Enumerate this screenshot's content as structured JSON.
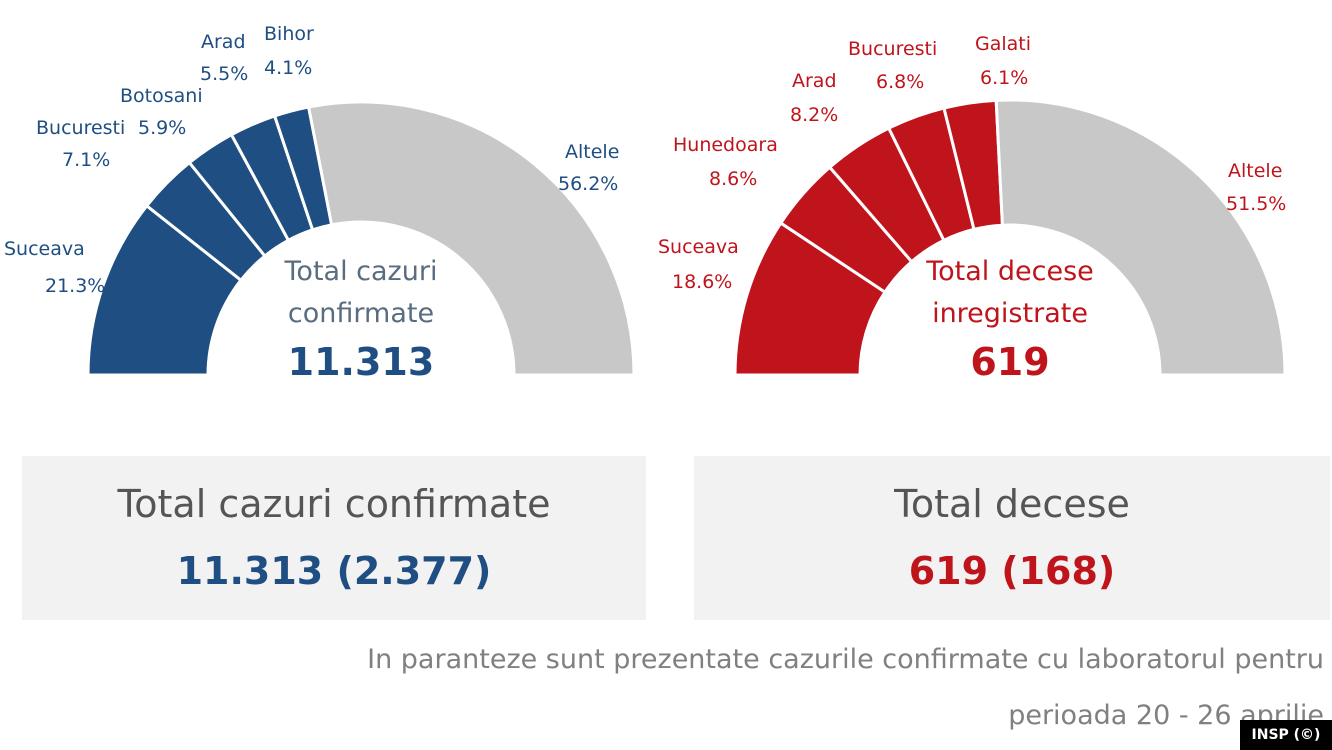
{
  "chart_data": [
    {
      "type": "pie",
      "variant": "half-donut",
      "center_text": [
        "Total cazuri",
        "confirmate"
      ],
      "center_total": "11.313",
      "colors": {
        "main": "#1f4e82",
        "other": "#c8c8c8",
        "label": "#1f4e82"
      },
      "slices": [
        {
          "name": "Suceava",
          "value": 21.3,
          "value_label": "21.3%"
        },
        {
          "name": "Bucuresti",
          "value": 7.1,
          "value_label": "7.1%"
        },
        {
          "name": "Botosani",
          "value": 5.9,
          "value_label": "5.9%"
        },
        {
          "name": "Arad",
          "value": 5.5,
          "value_label": "5.5%"
        },
        {
          "name": "Bihor",
          "value": 4.1,
          "value_label": "4.1%"
        },
        {
          "name": "Altele",
          "value": 56.2,
          "value_label": "56.2%"
        }
      ]
    },
    {
      "type": "pie",
      "variant": "half-donut",
      "center_text": [
        "Total decese",
        "inregistrate"
      ],
      "center_total": "619",
      "colors": {
        "main": "#c0141c",
        "other": "#c8c8c8",
        "label": "#c0141c"
      },
      "slices": [
        {
          "name": "Suceava",
          "value": 18.6,
          "value_label": "18.6%"
        },
        {
          "name": "Hunedoara",
          "value": 8.6,
          "value_label": "8.6%"
        },
        {
          "name": "Arad",
          "value": 8.2,
          "value_label": "8.2%"
        },
        {
          "name": "Bucuresti",
          "value": 6.8,
          "value_label": "6.8%"
        },
        {
          "name": "Galati",
          "value": 6.1,
          "value_label": "6.1%"
        },
        {
          "name": "Altele",
          "value": 51.5,
          "value_label": "51.5%"
        }
      ]
    }
  ],
  "panels": {
    "cases": {
      "title": "Total cazuri confirmate",
      "value": "11.313 (2.377)",
      "color": "#1f4e82"
    },
    "deaths": {
      "title": "Total decese",
      "value": "619 (168)",
      "color": "#c0141c"
    }
  },
  "footnote": {
    "line1": "In paranteze sunt prezentate cazurile confirmate cu laboratorul pentru",
    "line2": "perioada 20 - 26 aprilie"
  },
  "credit": "INSP (©)"
}
